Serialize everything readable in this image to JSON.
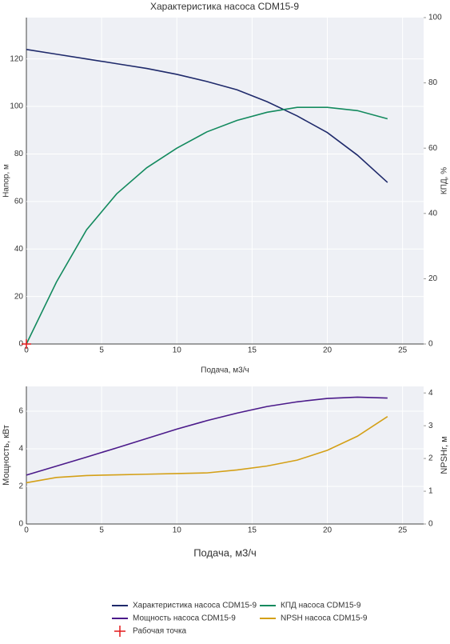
{
  "chart_data": [
    {
      "type": "line",
      "title": "Характеристика насоса CDM15-9",
      "x_label": "Подача, м3/ч",
      "y_label": "Напор, м",
      "y2_label": "КПД, %",
      "x": [
        0,
        2,
        4,
        6,
        8,
        10,
        12,
        14,
        16,
        18,
        20,
        22,
        24
      ],
      "xlim": [
        0,
        26.4
      ],
      "xticks": [
        0,
        5,
        10,
        15,
        20,
        25
      ],
      "ylim": [
        0,
        137.4
      ],
      "yticks": [
        0,
        20,
        40,
        60,
        80,
        100,
        120
      ],
      "y2lim": [
        0,
        100
      ],
      "y2ticks": [
        0,
        20,
        40,
        60,
        80,
        100
      ],
      "grid": true,
      "series": [
        {
          "name": "Характеристика насоса CDM15-9",
          "color": "#1f2a6b",
          "values": [
            124,
            122,
            120,
            118,
            116,
            113.5,
            110.5,
            107,
            102,
            96,
            89,
            79.5,
            68
          ]
        },
        {
          "name": "КПД насоса CDM15-9",
          "color": "#138a5e",
          "axis": "y2",
          "values": [
            0,
            19,
            35,
            46,
            54,
            60,
            65,
            68.5,
            71,
            72.5,
            72.5,
            71.5,
            69
          ]
        },
        {
          "name": "Рабочая точка",
          "color": "#e41a1c",
          "marker": "cross",
          "x": [
            0
          ],
          "values": [
            0
          ]
        }
      ]
    },
    {
      "type": "line",
      "x_label": "Подача, м3/ч",
      "y_label": "Мощность, кВт",
      "y2_label": "NPSHr, м",
      "x": [
        0,
        2,
        4,
        6,
        8,
        10,
        12,
        14,
        16,
        18,
        20,
        22,
        24
      ],
      "xlim": [
        0,
        26.4
      ],
      "xticks": [
        0,
        5,
        10,
        15,
        20,
        25
      ],
      "ylim": [
        0,
        7.32
      ],
      "yticks": [
        0,
        2,
        4,
        6
      ],
      "y2lim": [
        0,
        4.2
      ],
      "y2ticks": [
        0,
        1,
        2,
        3,
        4
      ],
      "grid": true,
      "series": [
        {
          "name": "Мощность насоса CDM15-9",
          "color": "#4b1a8a",
          "values": [
            2.6,
            3.08,
            3.56,
            4.05,
            4.55,
            5.05,
            5.5,
            5.9,
            6.25,
            6.5,
            6.68,
            6.75,
            6.7
          ]
        },
        {
          "name": "NPSH насоса CDM15-9",
          "color": "#d4a017",
          "axis": "y2",
          "values": [
            1.26,
            1.42,
            1.48,
            1.5,
            1.52,
            1.54,
            1.56,
            1.65,
            1.77,
            1.95,
            2.25,
            2.68,
            3.28
          ]
        }
      ]
    }
  ]
}
